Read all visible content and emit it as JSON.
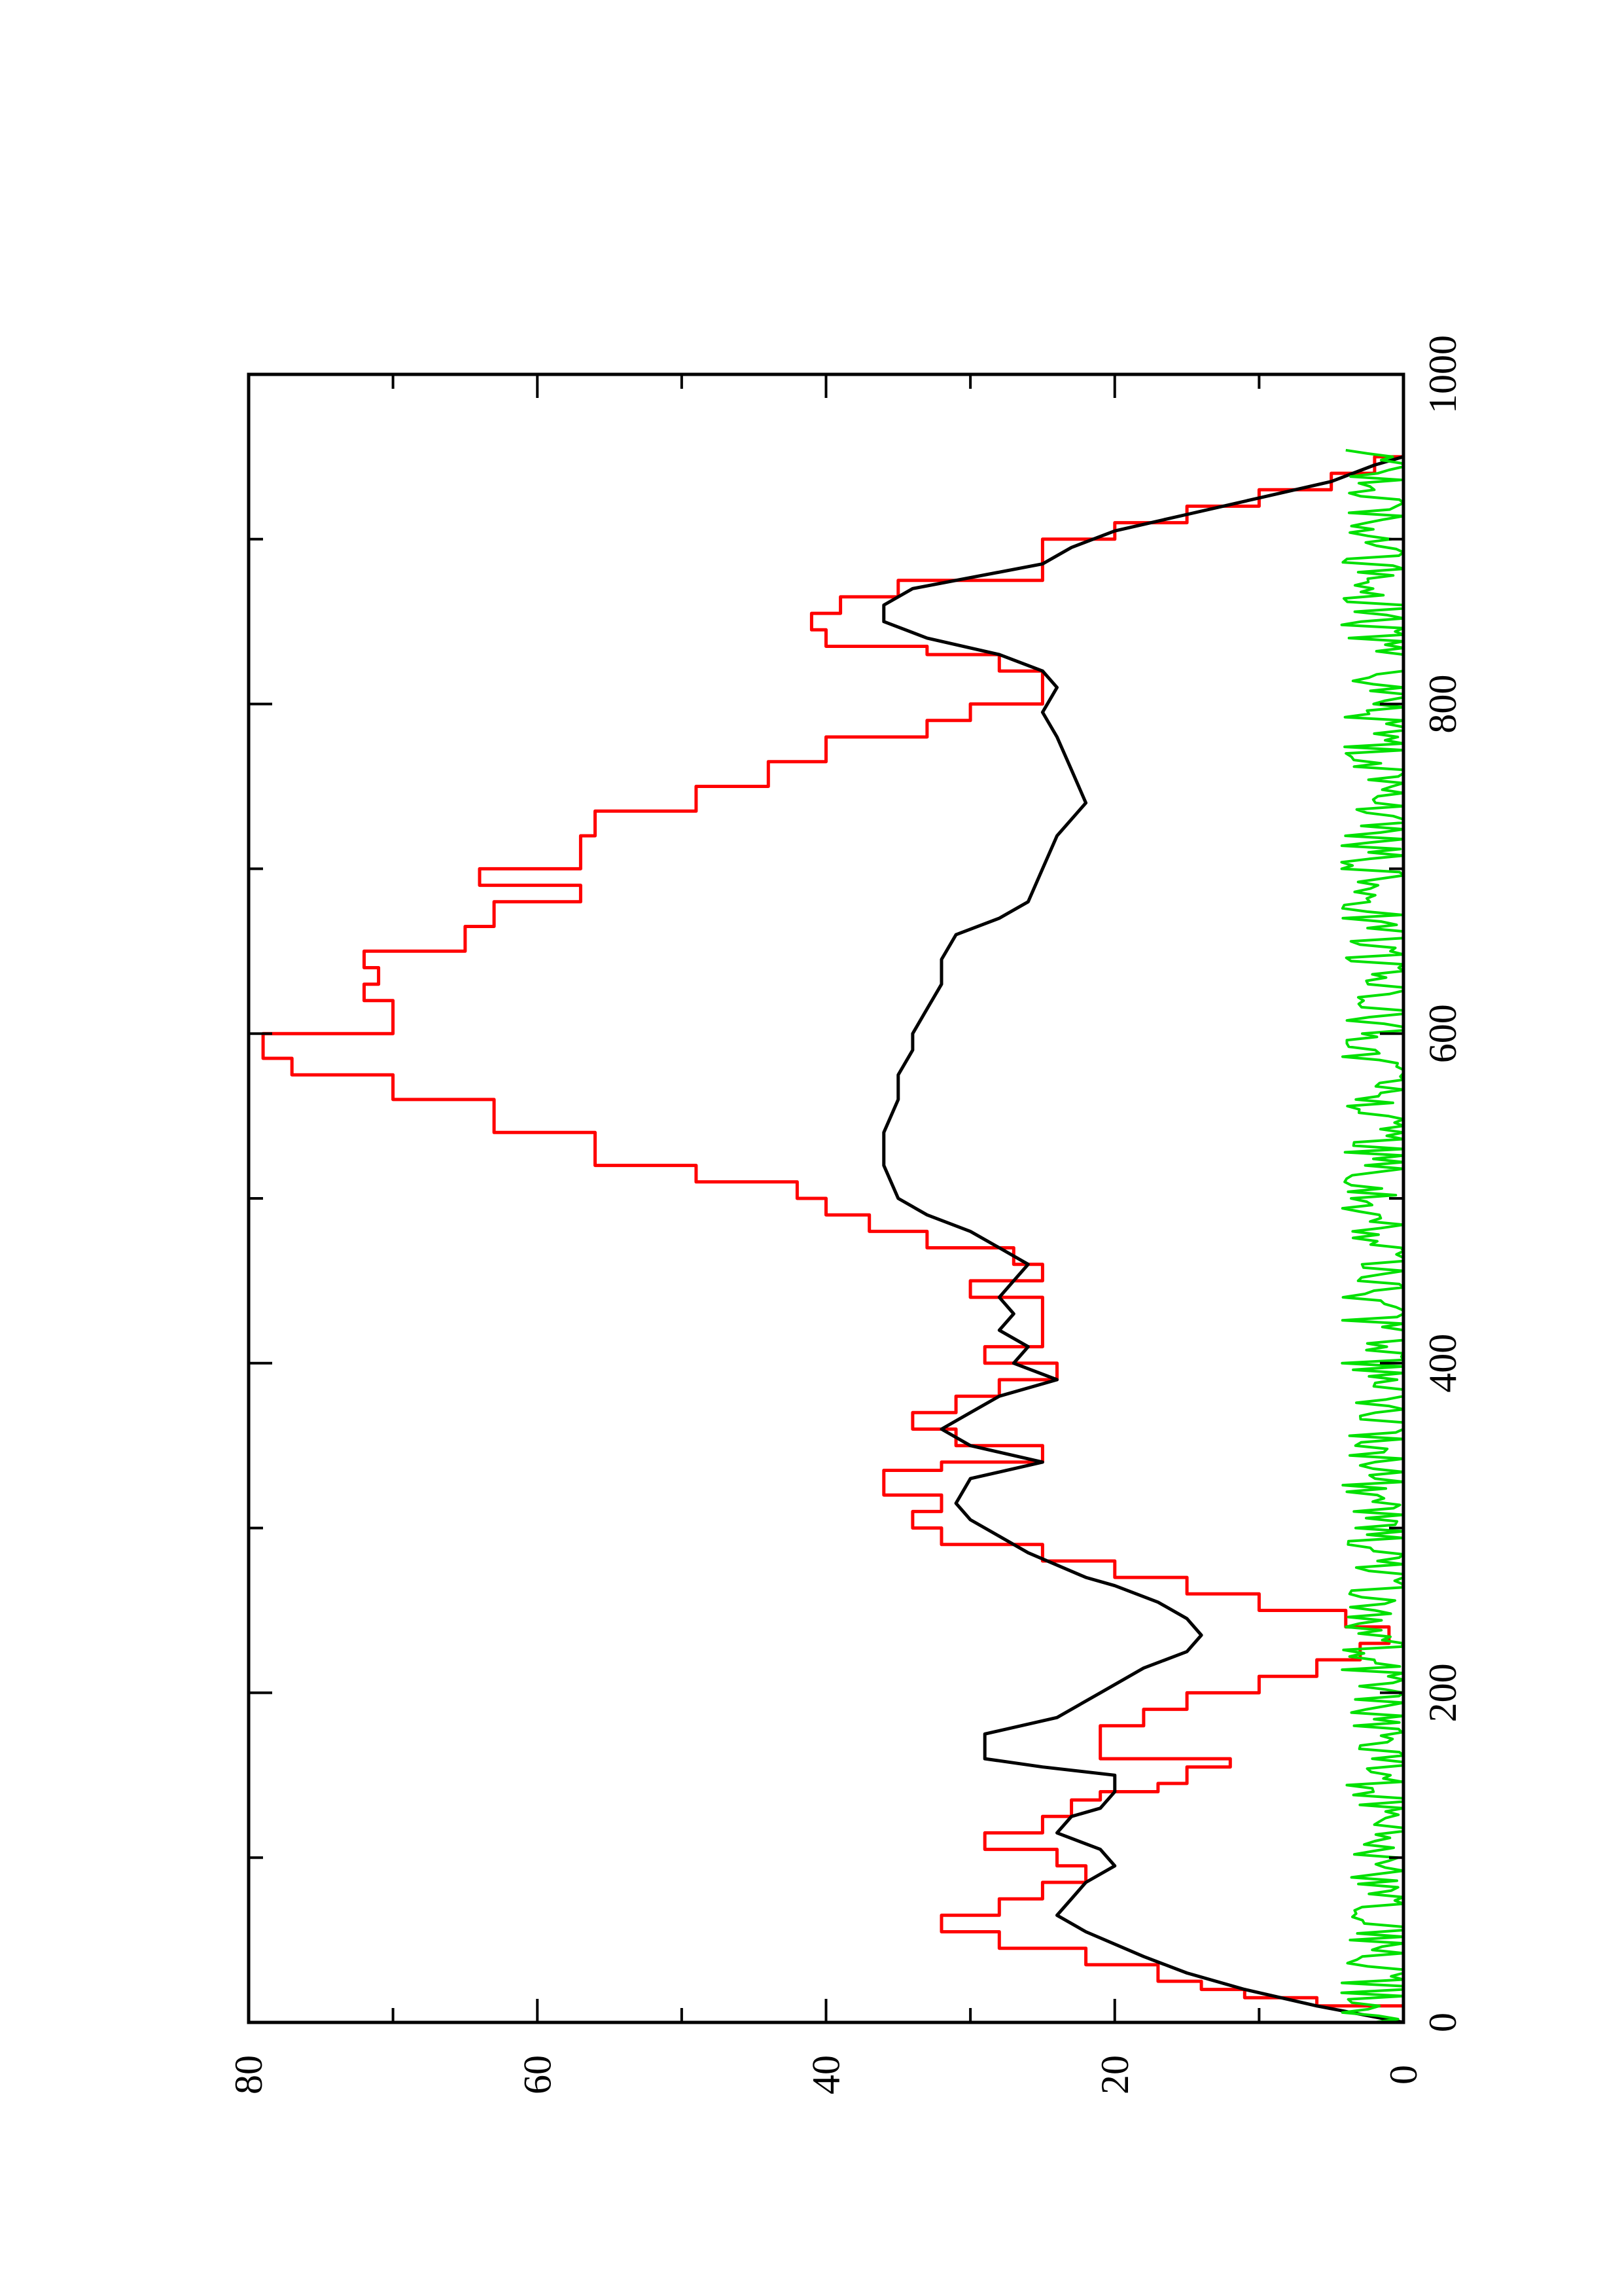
{
  "chart_data": {
    "type": "line",
    "orientation": "rotated-90-ccw",
    "title": "",
    "xlabel": "",
    "ylabel": "",
    "xlim": [
      0,
      1000
    ],
    "ylim": [
      0,
      80
    ],
    "x_ticks": [
      0,
      200,
      400,
      600,
      800,
      1000
    ],
    "y_ticks": [
      0,
      20,
      40,
      60,
      80
    ],
    "x_minor_ticks": [
      100,
      300,
      500,
      700,
      900
    ],
    "y_minor_ticks": [
      10,
      30,
      50,
      70
    ],
    "grid": false,
    "legend": "none",
    "series": [
      {
        "color": "#ff0000",
        "style": "step",
        "points": [
          [
            0,
            0
          ],
          [
            10,
            6
          ],
          [
            15,
            11
          ],
          [
            20,
            14
          ],
          [
            25,
            17
          ],
          [
            35,
            22
          ],
          [
            45,
            28
          ],
          [
            55,
            32
          ],
          [
            65,
            28
          ],
          [
            75,
            25
          ],
          [
            85,
            22
          ],
          [
            95,
            24
          ],
          [
            105,
            29
          ],
          [
            115,
            25
          ],
          [
            125,
            23
          ],
          [
            135,
            21
          ],
          [
            140,
            17
          ],
          [
            145,
            15
          ],
          [
            155,
            12
          ],
          [
            160,
            21
          ],
          [
            170,
            21
          ],
          [
            180,
            18
          ],
          [
            190,
            15
          ],
          [
            200,
            10
          ],
          [
            210,
            6
          ],
          [
            220,
            3
          ],
          [
            230,
            1
          ],
          [
            240,
            4
          ],
          [
            250,
            10
          ],
          [
            260,
            15
          ],
          [
            270,
            20
          ],
          [
            280,
            25
          ],
          [
            290,
            32
          ],
          [
            300,
            34
          ],
          [
            310,
            32
          ],
          [
            320,
            36
          ],
          [
            335,
            32
          ],
          [
            340,
            25
          ],
          [
            350,
            31
          ],
          [
            360,
            34
          ],
          [
            370,
            31
          ],
          [
            380,
            28
          ],
          [
            390,
            24
          ],
          [
            400,
            29
          ],
          [
            410,
            25
          ],
          [
            420,
            25
          ],
          [
            430,
            25
          ],
          [
            440,
            30
          ],
          [
            450,
            25
          ],
          [
            460,
            27
          ],
          [
            470,
            33
          ],
          [
            480,
            37
          ],
          [
            490,
            40
          ],
          [
            500,
            42
          ],
          [
            510,
            49
          ],
          [
            520,
            56
          ],
          [
            540,
            63
          ],
          [
            560,
            70
          ],
          [
            575,
            77
          ],
          [
            585,
            79
          ],
          [
            600,
            70
          ],
          [
            620,
            72
          ],
          [
            630,
            71
          ],
          [
            640,
            72
          ],
          [
            650,
            65
          ],
          [
            665,
            63
          ],
          [
            680,
            57
          ],
          [
            690,
            64
          ],
          [
            700,
            57
          ],
          [
            720,
            56
          ],
          [
            735,
            49
          ],
          [
            750,
            44
          ],
          [
            765,
            40
          ],
          [
            780,
            33
          ],
          [
            790,
            30
          ],
          [
            800,
            25
          ],
          [
            810,
            25
          ],
          [
            820,
            28
          ],
          [
            830,
            33
          ],
          [
            835,
            40
          ],
          [
            845,
            41
          ],
          [
            855,
            39
          ],
          [
            865,
            35
          ],
          [
            875,
            25
          ],
          [
            890,
            25
          ],
          [
            900,
            20
          ],
          [
            910,
            15
          ],
          [
            920,
            10
          ],
          [
            930,
            5
          ],
          [
            940,
            2
          ],
          [
            950,
            0
          ]
        ]
      },
      {
        "color": "#000000",
        "style": "line",
        "points": [
          [
            0,
            0
          ],
          [
            10,
            6
          ],
          [
            20,
            11
          ],
          [
            30,
            15
          ],
          [
            40,
            18
          ],
          [
            55,
            22
          ],
          [
            65,
            24
          ],
          [
            75,
            23
          ],
          [
            85,
            22
          ],
          [
            95,
            20
          ],
          [
            105,
            21
          ],
          [
            115,
            24
          ],
          [
            125,
            23
          ],
          [
            130,
            21
          ],
          [
            140,
            20
          ],
          [
            150,
            20
          ],
          [
            155,
            25
          ],
          [
            160,
            29
          ],
          [
            175,
            29
          ],
          [
            185,
            24
          ],
          [
            200,
            21
          ],
          [
            215,
            18
          ],
          [
            225,
            15
          ],
          [
            235,
            14
          ],
          [
            245,
            15
          ],
          [
            255,
            17
          ],
          [
            265,
            20
          ],
          [
            270,
            22
          ],
          [
            285,
            26
          ],
          [
            295,
            28
          ],
          [
            305,
            30
          ],
          [
            315,
            31
          ],
          [
            330,
            30
          ],
          [
            340,
            25
          ],
          [
            350,
            30
          ],
          [
            360,
            32
          ],
          [
            370,
            30
          ],
          [
            380,
            28
          ],
          [
            390,
            24
          ],
          [
            400,
            27
          ],
          [
            410,
            26
          ],
          [
            420,
            28
          ],
          [
            430,
            27
          ],
          [
            440,
            28
          ],
          [
            450,
            27
          ],
          [
            460,
            26
          ],
          [
            470,
            28
          ],
          [
            480,
            30
          ],
          [
            490,
            33
          ],
          [
            500,
            35
          ],
          [
            520,
            36
          ],
          [
            540,
            36
          ],
          [
            560,
            35
          ],
          [
            575,
            35
          ],
          [
            590,
            34
          ],
          [
            600,
            34
          ],
          [
            615,
            33
          ],
          [
            630,
            32
          ],
          [
            645,
            32
          ],
          [
            660,
            31
          ],
          [
            670,
            28
          ],
          [
            680,
            26
          ],
          [
            700,
            25
          ],
          [
            720,
            24
          ],
          [
            740,
            22
          ],
          [
            760,
            23
          ],
          [
            780,
            24
          ],
          [
            795,
            25
          ],
          [
            810,
            24
          ],
          [
            820,
            25
          ],
          [
            830,
            28
          ],
          [
            840,
            33
          ],
          [
            850,
            36
          ],
          [
            860,
            36
          ],
          [
            870,
            34
          ],
          [
            885,
            25
          ],
          [
            895,
            23
          ],
          [
            905,
            20
          ],
          [
            915,
            15
          ],
          [
            925,
            10
          ],
          [
            935,
            5
          ],
          [
            945,
            2
          ],
          [
            950,
            0
          ]
        ]
      },
      {
        "color": "#00e000",
        "style": "noisy",
        "baseline": 1.5,
        "amplitude": 2.8,
        "x_range": [
          0,
          955
        ]
      }
    ]
  }
}
